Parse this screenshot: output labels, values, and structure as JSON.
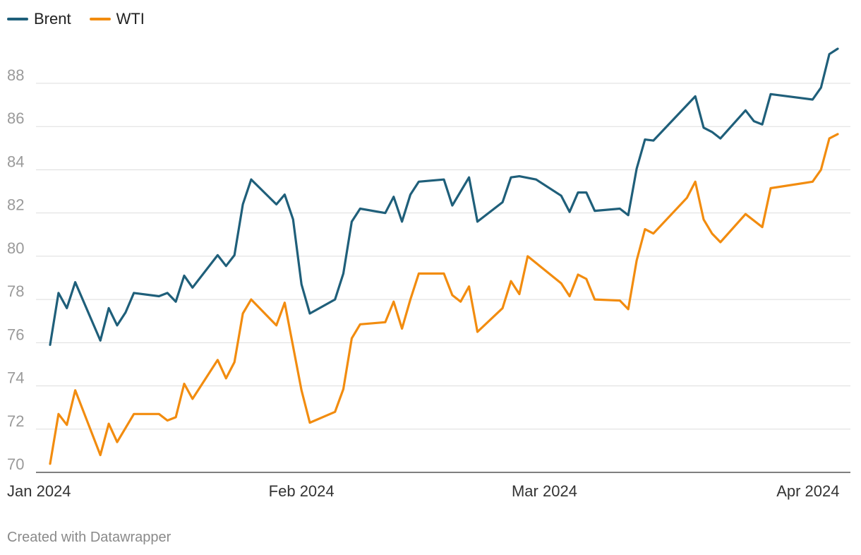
{
  "chart_data": {
    "type": "line",
    "title": "",
    "xlabel": "",
    "ylabel": "",
    "ylim": [
      70,
      90
    ],
    "yticks": [
      70,
      72,
      74,
      76,
      78,
      80,
      82,
      84,
      86,
      88
    ],
    "xlim": [
      "2024-01-02",
      "2024-04-05"
    ],
    "xticks": [
      {
        "date": "2024-01-01",
        "label": "Jan 2024"
      },
      {
        "date": "2024-02-01",
        "label": "Feb 2024"
      },
      {
        "date": "2024-03-01",
        "label": "Mar 2024"
      },
      {
        "date": "2024-04-01",
        "label": "Apr 2024"
      }
    ],
    "grid": true,
    "legend_position": "top-left",
    "series": [
      {
        "name": "Brent",
        "color": "#1f5f7a",
        "points": [
          [
            "2024-01-02",
            75.9
          ],
          [
            "2024-01-03",
            78.3
          ],
          [
            "2024-01-04",
            77.6
          ],
          [
            "2024-01-05",
            78.8
          ],
          [
            "2024-01-08",
            76.1
          ],
          [
            "2024-01-09",
            77.6
          ],
          [
            "2024-01-10",
            76.8
          ],
          [
            "2024-01-11",
            77.4
          ],
          [
            "2024-01-12",
            78.3
          ],
          [
            "2024-01-15",
            78.15
          ],
          [
            "2024-01-16",
            78.3
          ],
          [
            "2024-01-17",
            77.9
          ],
          [
            "2024-01-18",
            79.1
          ],
          [
            "2024-01-19",
            78.55
          ],
          [
            "2024-01-22",
            80.05
          ],
          [
            "2024-01-23",
            79.55
          ],
          [
            "2024-01-24",
            80.05
          ],
          [
            "2024-01-25",
            82.4
          ],
          [
            "2024-01-26",
            83.55
          ],
          [
            "2024-01-29",
            82.4
          ],
          [
            "2024-01-30",
            82.85
          ],
          [
            "2024-01-31",
            81.7
          ],
          [
            "2024-02-01",
            78.7
          ],
          [
            "2024-02-02",
            77.35
          ],
          [
            "2024-02-05",
            78.0
          ],
          [
            "2024-02-06",
            79.2
          ],
          [
            "2024-02-07",
            81.6
          ],
          [
            "2024-02-08",
            82.2
          ],
          [
            "2024-02-11",
            82.0
          ],
          [
            "2024-02-12",
            82.75
          ],
          [
            "2024-02-13",
            81.6
          ],
          [
            "2024-02-14",
            82.85
          ],
          [
            "2024-02-15",
            83.45
          ],
          [
            "2024-02-18",
            83.55
          ],
          [
            "2024-02-19",
            82.35
          ],
          [
            "2024-02-21",
            83.65
          ],
          [
            "2024-02-22",
            81.6
          ],
          [
            "2024-02-25",
            82.5
          ],
          [
            "2024-02-26",
            83.65
          ],
          [
            "2024-02-27",
            83.7
          ],
          [
            "2024-02-29",
            83.55
          ],
          [
            "2024-03-03",
            82.8
          ],
          [
            "2024-03-04",
            82.05
          ],
          [
            "2024-03-05",
            82.95
          ],
          [
            "2024-03-06",
            82.95
          ],
          [
            "2024-03-07",
            82.1
          ],
          [
            "2024-03-10",
            82.2
          ],
          [
            "2024-03-11",
            81.9
          ],
          [
            "2024-03-12",
            84.05
          ],
          [
            "2024-03-13",
            85.4
          ],
          [
            "2024-03-14",
            85.35
          ],
          [
            "2024-03-19",
            87.4
          ],
          [
            "2024-03-20",
            85.95
          ],
          [
            "2024-03-21",
            85.75
          ],
          [
            "2024-03-22",
            85.45
          ],
          [
            "2024-03-25",
            86.75
          ],
          [
            "2024-03-26",
            86.25
          ],
          [
            "2024-03-27",
            86.1
          ],
          [
            "2024-03-28",
            87.5
          ],
          [
            "2024-04-02",
            87.25
          ],
          [
            "2024-04-03",
            87.8
          ],
          [
            "2024-04-04",
            89.35
          ],
          [
            "2024-04-05",
            89.6
          ]
        ]
      },
      {
        "name": "WTI",
        "color": "#f28c0f",
        "points": [
          [
            "2024-01-02",
            70.4
          ],
          [
            "2024-01-03",
            72.7
          ],
          [
            "2024-01-04",
            72.2
          ],
          [
            "2024-01-05",
            73.8
          ],
          [
            "2024-01-08",
            70.8
          ],
          [
            "2024-01-09",
            72.25
          ],
          [
            "2024-01-10",
            71.4
          ],
          [
            "2024-01-12",
            72.7
          ],
          [
            "2024-01-15",
            72.7
          ],
          [
            "2024-01-16",
            72.4
          ],
          [
            "2024-01-17",
            72.55
          ],
          [
            "2024-01-18",
            74.1
          ],
          [
            "2024-01-19",
            73.4
          ],
          [
            "2024-01-22",
            75.2
          ],
          [
            "2024-01-23",
            74.35
          ],
          [
            "2024-01-24",
            75.1
          ],
          [
            "2024-01-25",
            77.35
          ],
          [
            "2024-01-26",
            78.0
          ],
          [
            "2024-01-29",
            76.8
          ],
          [
            "2024-01-30",
            77.85
          ],
          [
            "2024-02-01",
            73.8
          ],
          [
            "2024-02-02",
            72.3
          ],
          [
            "2024-02-05",
            72.8
          ],
          [
            "2024-02-06",
            73.85
          ],
          [
            "2024-02-07",
            76.2
          ],
          [
            "2024-02-08",
            76.85
          ],
          [
            "2024-02-11",
            76.95
          ],
          [
            "2024-02-12",
            77.9
          ],
          [
            "2024-02-13",
            76.65
          ],
          [
            "2024-02-14",
            78.0
          ],
          [
            "2024-02-15",
            79.2
          ],
          [
            "2024-02-18",
            79.2
          ],
          [
            "2024-02-19",
            78.2
          ],
          [
            "2024-02-20",
            77.9
          ],
          [
            "2024-02-21",
            78.6
          ],
          [
            "2024-02-22",
            76.5
          ],
          [
            "2024-02-25",
            77.6
          ],
          [
            "2024-02-26",
            78.85
          ],
          [
            "2024-02-27",
            78.25
          ],
          [
            "2024-02-28",
            80.0
          ],
          [
            "2024-03-03",
            78.75
          ],
          [
            "2024-03-04",
            78.15
          ],
          [
            "2024-03-05",
            79.15
          ],
          [
            "2024-03-06",
            78.95
          ],
          [
            "2024-03-07",
            78.0
          ],
          [
            "2024-03-10",
            77.95
          ],
          [
            "2024-03-11",
            77.55
          ],
          [
            "2024-03-12",
            79.8
          ],
          [
            "2024-03-13",
            81.25
          ],
          [
            "2024-03-14",
            81.05
          ],
          [
            "2024-03-18",
            82.7
          ],
          [
            "2024-03-19",
            83.45
          ],
          [
            "2024-03-20",
            81.7
          ],
          [
            "2024-03-21",
            81.05
          ],
          [
            "2024-03-22",
            80.65
          ],
          [
            "2024-03-25",
            81.95
          ],
          [
            "2024-03-27",
            81.35
          ],
          [
            "2024-03-28",
            83.15
          ],
          [
            "2024-04-02",
            83.45
          ],
          [
            "2024-04-03",
            84.0
          ],
          [
            "2024-04-04",
            85.45
          ],
          [
            "2024-04-05",
            85.65
          ]
        ]
      }
    ],
    "credit": "Created with Datawrapper"
  },
  "colors": {
    "grid": "#dddddd",
    "axis": "#333333",
    "tick_text_y": "#9a9a9a",
    "tick_text_x": "#333333"
  }
}
